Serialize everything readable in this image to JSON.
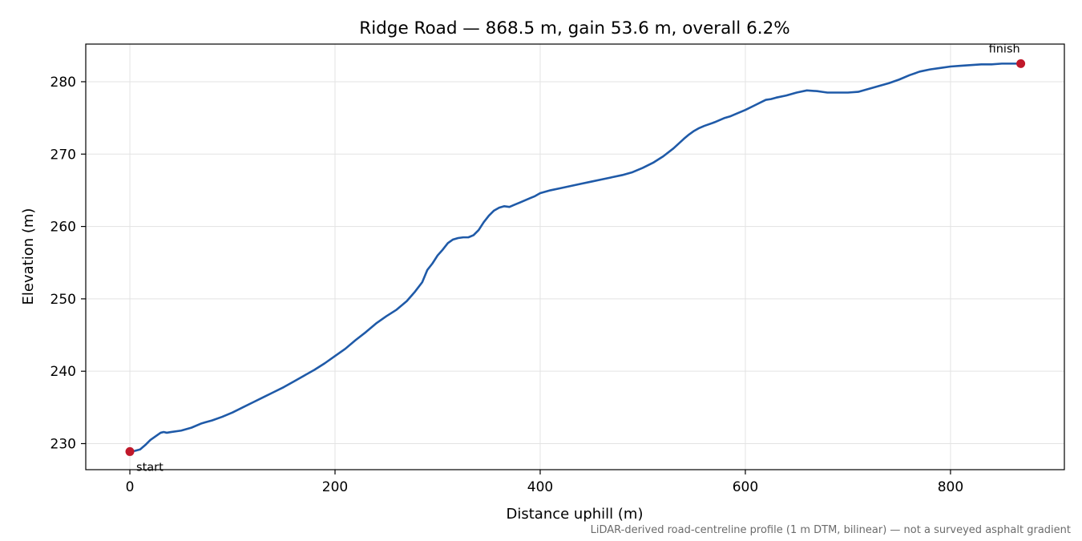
{
  "chart_data": {
    "type": "line",
    "title": "Ridge Road — 868.5 m, gain 53.6 m, overall 6.2%",
    "xlabel": "Distance uphill (m)",
    "ylabel": "Elevation (m)",
    "xlim": [
      -43,
      911
    ],
    "ylim": [
      226.4,
      285.2
    ],
    "xticks": [
      0,
      200,
      400,
      600,
      800
    ],
    "yticks": [
      230,
      240,
      250,
      260,
      270,
      280
    ],
    "grid": true,
    "footnote": "LiDAR-derived road-centreline profile (1 m DTM, bilinear) — not a surveyed asphalt gradient",
    "line_color": "#1f5aa8",
    "marker_color": "#c0182a",
    "series": [
      {
        "x": [
          0,
          5,
          10,
          15,
          20,
          25,
          30,
          33,
          36,
          40,
          50,
          60,
          70,
          75,
          80,
          90,
          100,
          110,
          120,
          130,
          140,
          150,
          160,
          170,
          180,
          190,
          200,
          210,
          220,
          230,
          240,
          250,
          260,
          270,
          278,
          285,
          290,
          295,
          300,
          305,
          310,
          315,
          320,
          325,
          330,
          335,
          340,
          345,
          350,
          355,
          360,
          365,
          370,
          375,
          380,
          385,
          390,
          395,
          400,
          410,
          420,
          430,
          440,
          450,
          460,
          470,
          480,
          490,
          500,
          510,
          520,
          530,
          540,
          545,
          550,
          555,
          560,
          570,
          580,
          585,
          590,
          600,
          610,
          620,
          625,
          630,
          640,
          650,
          660,
          670,
          675,
          680,
          690,
          700,
          710,
          720,
          730,
          740,
          750,
          760,
          770,
          780,
          790,
          800,
          810,
          820,
          830,
          840,
          850,
          860,
          868.5
        ],
        "y": [
          228.9,
          229.0,
          229.2,
          229.8,
          230.5,
          231.0,
          231.5,
          231.6,
          231.5,
          231.6,
          231.8,
          232.2,
          232.8,
          233.0,
          233.2,
          233.7,
          234.3,
          235.0,
          235.7,
          236.4,
          237.1,
          237.8,
          238.6,
          239.4,
          240.2,
          241.1,
          242.1,
          243.1,
          244.3,
          245.4,
          246.6,
          247.6,
          248.5,
          249.7,
          251.0,
          252.3,
          254.0,
          254.9,
          256.0,
          256.8,
          257.7,
          258.2,
          258.4,
          258.5,
          258.5,
          258.8,
          259.5,
          260.6,
          261.5,
          262.2,
          262.6,
          262.8,
          262.7,
          263.0,
          263.3,
          263.6,
          263.9,
          264.2,
          264.6,
          265.0,
          265.3,
          265.6,
          265.9,
          266.2,
          266.5,
          266.8,
          267.1,
          267.5,
          268.1,
          268.8,
          269.7,
          270.8,
          272.1,
          272.7,
          273.2,
          273.6,
          273.9,
          274.4,
          275.0,
          275.2,
          275.5,
          276.1,
          276.8,
          277.5,
          277.6,
          277.8,
          278.1,
          278.5,
          278.8,
          278.7,
          278.6,
          278.5,
          278.5,
          278.5,
          278.6,
          279.0,
          279.4,
          279.8,
          280.3,
          280.9,
          281.4,
          281.7,
          281.9,
          282.1,
          282.2,
          282.3,
          282.4,
          282.4,
          282.5,
          282.5,
          282.5
        ]
      }
    ],
    "annotations": [
      {
        "label": "start",
        "x": 0,
        "y": 228.9
      },
      {
        "label": "finish",
        "x": 868.5,
        "y": 282.5
      }
    ]
  }
}
